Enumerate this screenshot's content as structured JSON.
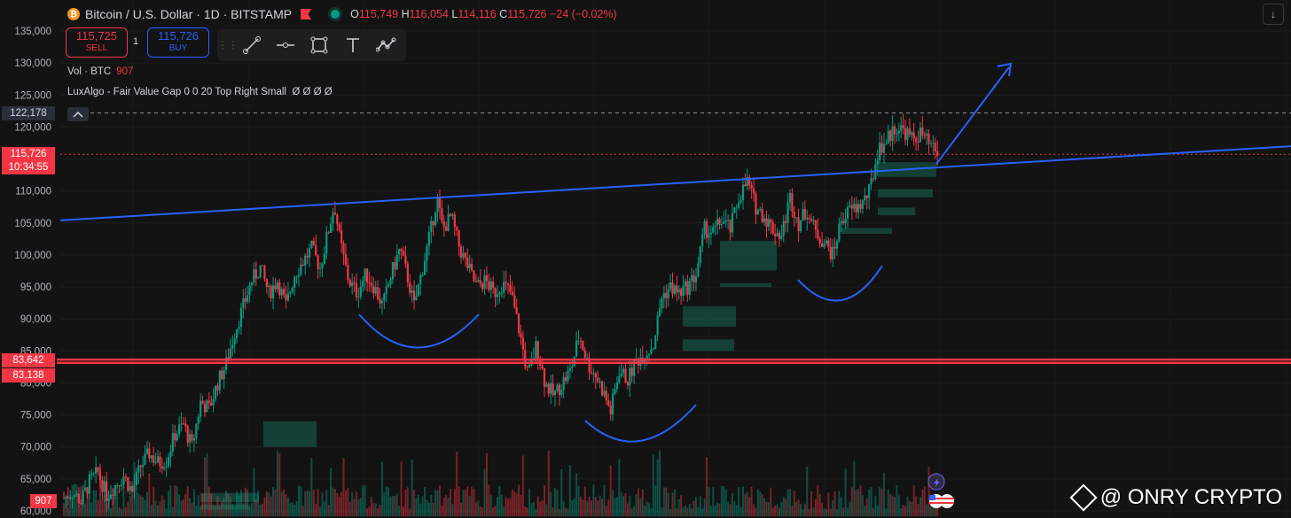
{
  "header": {
    "coin_symbol": "₿",
    "title": "Bitcoin / U.S. Dollar · 1D · BITSTAMP",
    "open_label": "O",
    "open": "115,749",
    "high_label": "H",
    "high": "116,054",
    "low_label": "L",
    "low": "114,116",
    "close_label": "C",
    "close": "115,726",
    "change": "−24 (−0.02%)"
  },
  "trade": {
    "sell_price": "115,725",
    "sell_label": "SELL",
    "spread": "1",
    "buy_price": "115,726",
    "buy_label": "BUY"
  },
  "toolbar": {
    "grip": "⋮⋮",
    "tools": [
      "line-tool-icon",
      "horizontal-ray-icon",
      "rectangle-icon",
      "text-icon",
      "path-icon"
    ]
  },
  "indicators": {
    "vol_label": "Vol · BTC",
    "vol_value": "907",
    "lux_label": "LuxAlgo - Fair Value Gap  0  0  20  Top Right  Small",
    "lux_values": "Ø  Ø  Ø  Ø"
  },
  "price_tags": {
    "dashed_level": "122,178",
    "last_price": "115,726",
    "countdown": "10:34:55",
    "support_high": "83,642",
    "support_low": "83,138",
    "volume": "907"
  },
  "watermark": "@ ONRY CRYPTO",
  "colors": {
    "up": "#089981",
    "down": "#f23645",
    "trendline": "#2962ff",
    "background": "#131313"
  },
  "chart_data": {
    "type": "line",
    "title": "Bitcoin / U.S. Dollar · 1D · BITSTAMP",
    "ylim": [
      60000,
      137000
    ],
    "yticks": [
      60000,
      65000,
      70000,
      75000,
      80000,
      85000,
      90000,
      95000,
      100000,
      105000,
      110000,
      115000,
      120000,
      125000,
      130000,
      135000
    ],
    "ytick_labels": [
      "60,000",
      "65,000",
      "70,000",
      "75,000",
      "80,000",
      "85,000",
      "90,000",
      "95,000",
      "100,000",
      "105,000",
      "110,000",
      "115,000",
      "120,000",
      "125,000",
      "130,000",
      "135,000"
    ],
    "series": [
      {
        "name": "",
        "points": [
          [
            0,
            62000
          ],
          [
            6,
            63000
          ],
          [
            12,
            61500
          ],
          [
            18,
            64500
          ],
          [
            24,
            66000
          ],
          [
            30,
            62500
          ],
          [
            36,
            64000
          ],
          [
            42,
            65500
          ],
          [
            48,
            63000
          ],
          [
            54,
            67000
          ],
          [
            60,
            69000
          ],
          [
            66,
            67500
          ],
          [
            72,
            68000
          ],
          [
            78,
            72000
          ],
          [
            84,
            73500
          ],
          [
            90,
            70000
          ],
          [
            96,
            77000
          ],
          [
            102,
            76000
          ],
          [
            108,
            80000
          ],
          [
            114,
            83000
          ],
          [
            120,
            88000
          ],
          [
            126,
            92000
          ],
          [
            132,
            96000
          ],
          [
            138,
            98000
          ],
          [
            144,
            94000
          ],
          [
            150,
            96000
          ],
          [
            156,
            92000
          ],
          [
            162,
            97000
          ],
          [
            168,
            99000
          ],
          [
            174,
            101000
          ],
          [
            180,
            98000
          ],
          [
            186,
            104000
          ],
          [
            190,
            108000
          ],
          [
            194,
            102000
          ],
          [
            200,
            96000
          ],
          [
            206,
            94000
          ],
          [
            212,
            97000
          ],
          [
            218,
            95000
          ],
          [
            224,
            92000
          ],
          [
            230,
            97000
          ],
          [
            236,
            101000
          ],
          [
            242,
            96000
          ],
          [
            246,
            92000
          ],
          [
            252,
            98000
          ],
          [
            258,
            104000
          ],
          [
            262,
            109000
          ],
          [
            266,
            104000
          ],
          [
            272,
            106000
          ],
          [
            278,
            101000
          ],
          [
            284,
            98000
          ],
          [
            290,
            95000
          ],
          [
            296,
            96000
          ],
          [
            302,
            94000
          ],
          [
            308,
            95500
          ],
          [
            314,
            94000
          ],
          [
            320,
            88000
          ],
          [
            326,
            81000
          ],
          [
            332,
            86000
          ],
          [
            338,
            80000
          ],
          [
            344,
            78000
          ],
          [
            350,
            80000
          ],
          [
            356,
            82000
          ],
          [
            362,
            87500
          ],
          [
            368,
            83000
          ],
          [
            374,
            81000
          ],
          [
            380,
            78000
          ],
          [
            384,
            75500
          ],
          [
            390,
            82000
          ],
          [
            396,
            80500
          ],
          [
            402,
            83500
          ],
          [
            408,
            84500
          ],
          [
            414,
            86000
          ],
          [
            420,
            93500
          ],
          [
            426,
            95000
          ],
          [
            432,
            94000
          ],
          [
            438,
            95000
          ],
          [
            444,
            97000
          ],
          [
            450,
            104000
          ],
          [
            456,
            103500
          ],
          [
            462,
            105500
          ],
          [
            468,
            104000
          ],
          [
            474,
            109000
          ],
          [
            480,
            111500
          ],
          [
            486,
            107500
          ],
          [
            492,
            106000
          ],
          [
            498,
            104000
          ],
          [
            504,
            103000
          ],
          [
            510,
            109000
          ],
          [
            516,
            105000
          ],
          [
            522,
            107000
          ],
          [
            528,
            103500
          ],
          [
            534,
            102000
          ],
          [
            540,
            100000
          ],
          [
            546,
            105500
          ],
          [
            552,
            107000
          ],
          [
            558,
            107500
          ],
          [
            562,
            108500
          ],
          [
            566,
            110000
          ],
          [
            572,
            116500
          ],
          [
            578,
            118000
          ],
          [
            584,
            120000
          ],
          [
            590,
            119500
          ],
          [
            596,
            118000
          ],
          [
            602,
            119000
          ],
          [
            608,
            117000
          ],
          [
            614,
            115700
          ]
        ]
      }
    ]
  }
}
